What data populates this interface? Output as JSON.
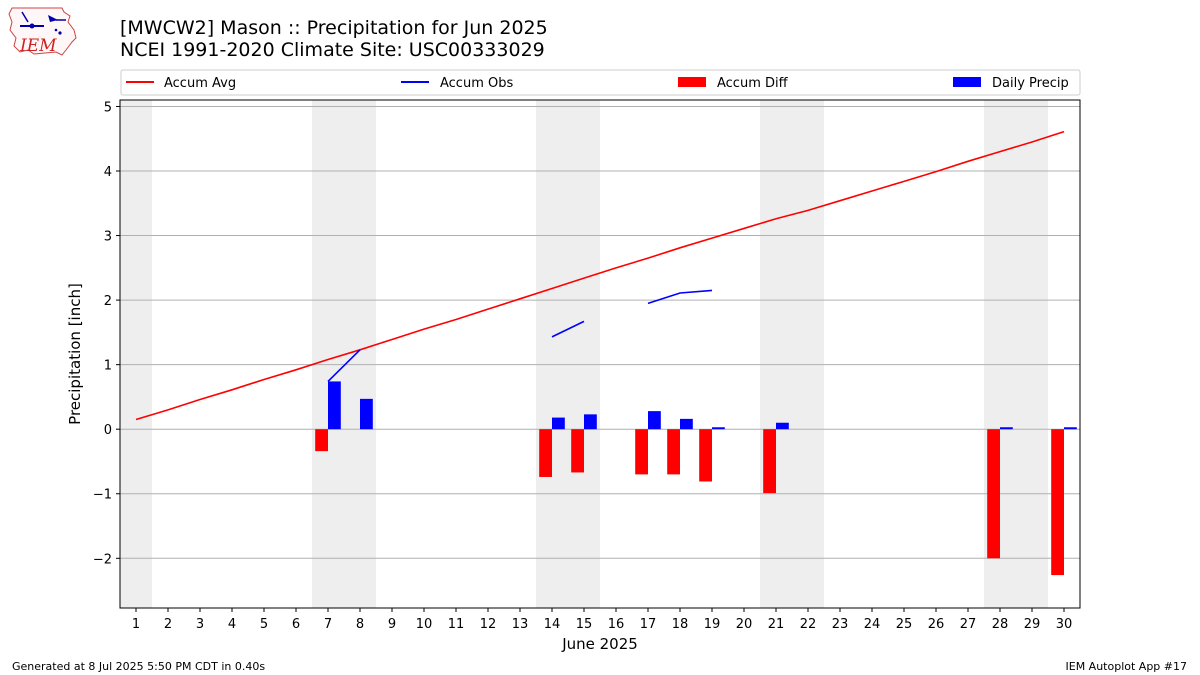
{
  "header": {
    "title_line1": "[MWCW2] Mason :: Precipitation for Jun 2025",
    "title_line2": "NCEI 1991-2020 Climate Site: USC00333029",
    "logo_text": "IEM"
  },
  "footer": {
    "generated": "Generated at 8 Jul 2025 5:50 PM CDT in 0.40s",
    "app": "IEM Autoplot App #17"
  },
  "chart_data": {
    "type": "bar",
    "xlabel": "June 2025",
    "ylabel": "Precipitation [inch]",
    "xlim": [
      0.5,
      30.5
    ],
    "ylim": [
      -2.77,
      5.1
    ],
    "x_ticks": [
      1,
      2,
      3,
      4,
      5,
      6,
      7,
      8,
      9,
      10,
      11,
      12,
      13,
      14,
      15,
      16,
      17,
      18,
      19,
      20,
      21,
      22,
      23,
      24,
      25,
      26,
      27,
      28,
      29,
      30
    ],
    "y_ticks": [
      -2,
      -1,
      0,
      1,
      2,
      3,
      4,
      5
    ],
    "y_tick_labels": [
      "−2",
      "−1",
      "0",
      "1",
      "2",
      "3",
      "4",
      "5"
    ],
    "grid": "horizontal",
    "legend_placement": "top",
    "weekend_bands": [
      [
        0.5,
        1.5
      ],
      [
        6.5,
        8.5
      ],
      [
        13.5,
        15.5
      ],
      [
        20.5,
        22.5
      ],
      [
        27.5,
        29.5
      ]
    ],
    "colors": {
      "avg": "#ff0000",
      "obs": "#0000ff",
      "diff": "#ff0000",
      "daily": "#0000ff",
      "band": "#eeeeee",
      "grid": "#b0b0b0"
    },
    "series": [
      {
        "name": "Accum Avg",
        "kind": "line",
        "x": [
          1,
          2,
          3,
          4,
          5,
          6,
          7,
          8,
          9,
          10,
          11,
          12,
          13,
          14,
          15,
          16,
          17,
          18,
          19,
          20,
          21,
          22,
          23,
          24,
          25,
          26,
          27,
          28,
          29,
          30
        ],
        "values": [
          0.15,
          0.3,
          0.46,
          0.61,
          0.77,
          0.92,
          1.08,
          1.23,
          1.39,
          1.55,
          1.7,
          1.86,
          2.02,
          2.18,
          2.34,
          2.5,
          2.65,
          2.81,
          2.96,
          3.11,
          3.26,
          3.39,
          3.54,
          3.69,
          3.84,
          3.99,
          4.15,
          4.3,
          4.45,
          4.61
        ]
      },
      {
        "name": "Accum Obs",
        "kind": "line",
        "segments": [
          {
            "x": [
              7,
              8
            ],
            "values": [
              0.74,
              1.23
            ]
          },
          {
            "x": [
              14,
              15
            ],
            "values": [
              1.43,
              1.67
            ]
          },
          {
            "x": [
              17,
              18,
              19
            ],
            "values": [
              1.95,
              2.11,
              2.15
            ]
          }
        ]
      },
      {
        "name": "Accum Diff",
        "kind": "bar",
        "x": [
          7,
          14,
          15,
          17,
          18,
          19,
          21,
          28,
          30
        ],
        "values": [
          -0.34,
          -0.74,
          -0.67,
          -0.7,
          -0.7,
          -0.81,
          -0.99,
          -2.0,
          -2.26
        ]
      },
      {
        "name": "Daily Precip",
        "kind": "bar",
        "x": [
          7,
          8,
          14,
          15,
          17,
          18,
          19,
          21,
          28,
          30
        ],
        "values": [
          0.74,
          0.47,
          0.18,
          0.23,
          0.28,
          0.16,
          0.03,
          0.1,
          0.03,
          0.03
        ]
      }
    ]
  }
}
